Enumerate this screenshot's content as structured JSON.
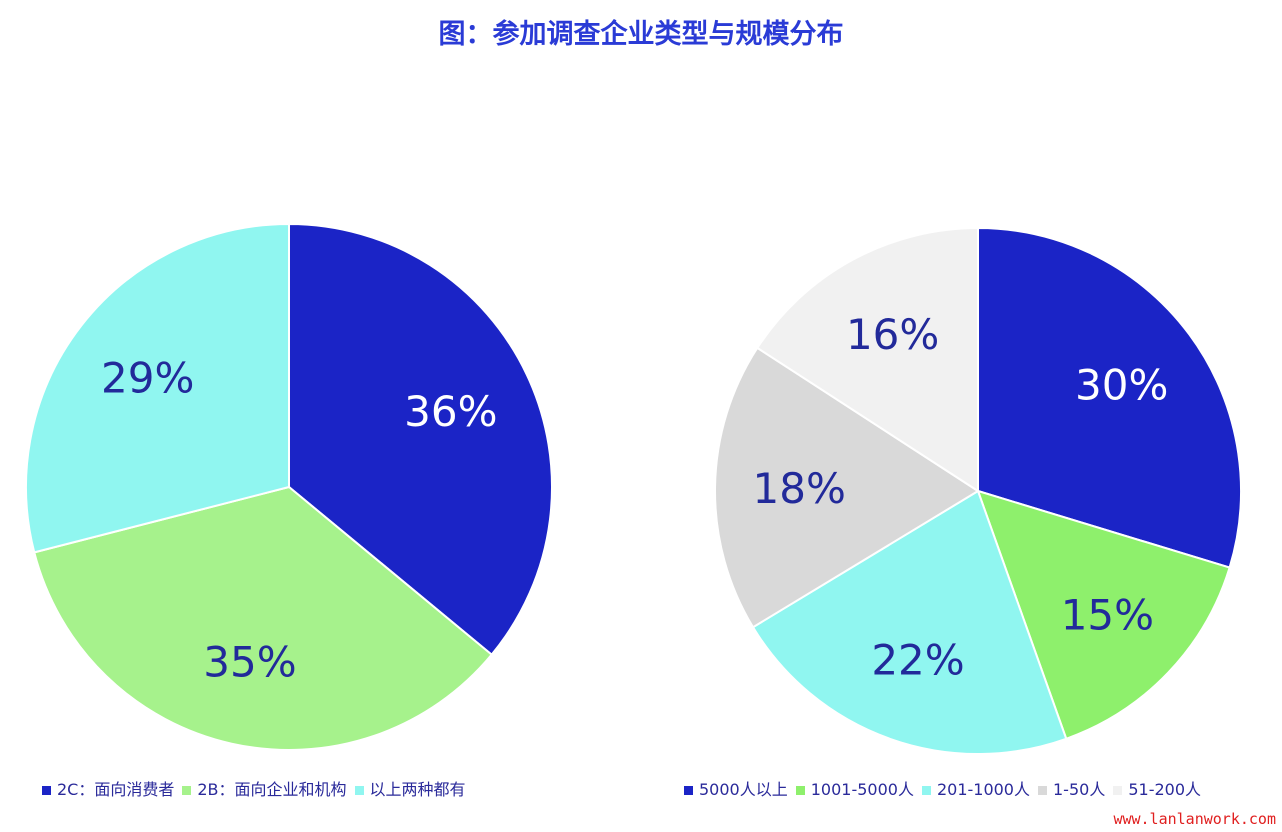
{
  "chart_data": [
    {
      "type": "pie",
      "title": "图：参加调查企业类型与规模分布",
      "categories": [
        "2C：面向消费者",
        "2B：面向企业和机构",
        "以上两种都有"
      ],
      "values": [
        36,
        35,
        29
      ],
      "labels": [
        "36%",
        "35%",
        "29%"
      ],
      "colors": [
        "#1b24c6",
        "#a6f28c",
        "#90f6f0"
      ],
      "label_colors": [
        "#ffffff",
        "#222a9a",
        "#222a9a"
      ],
      "start": "top",
      "direction": "clockwise",
      "legend": "bottom"
    },
    {
      "type": "pie",
      "categories": [
        "5000人以上",
        "1001-5000人",
        "201-1000人",
        "1-50人",
        "51-200人"
      ],
      "values": [
        30,
        15,
        22,
        18,
        16
      ],
      "labels": [
        "30%",
        "15%",
        "22%",
        "18%",
        "16%"
      ],
      "colors": [
        "#1b24c6",
        "#8ef06c",
        "#90f6f0",
        "#d9d9d9",
        "#f1f1f1"
      ],
      "label_colors": [
        "#ffffff",
        "#222a9a",
        "#222a9a",
        "#222a9a",
        "#222a9a"
      ],
      "start": "top",
      "direction": "clockwise",
      "legend": "bottom"
    }
  ],
  "watermark": "www.lanlanwork.com"
}
